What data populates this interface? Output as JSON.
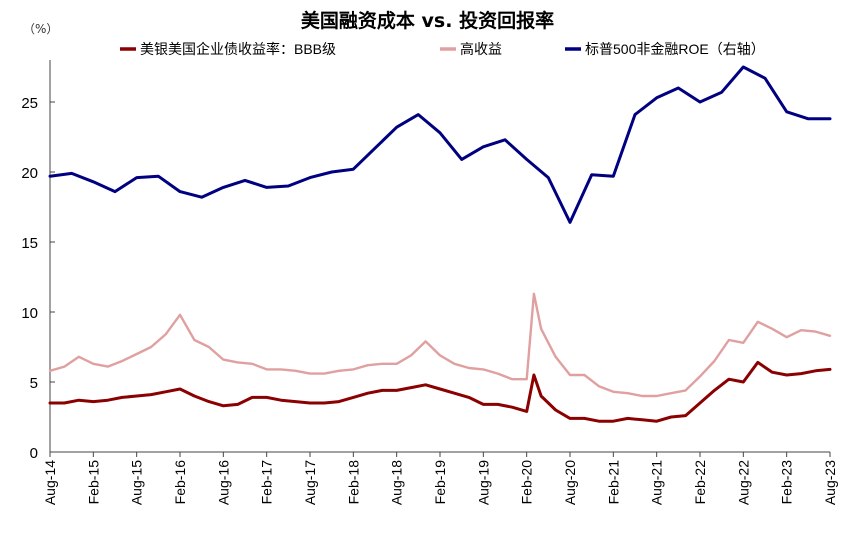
{
  "chart_data": {
    "type": "line",
    "title": "美国融资成本 vs. 投资回报率",
    "unit": "（%）",
    "xlabel": "",
    "ylabel": "",
    "ylim": [
      0,
      28
    ],
    "yticks": [
      0,
      5,
      10,
      15,
      20,
      25
    ],
    "x_start": "2014-08",
    "x_end": "2023-08",
    "xtick_labels": [
      "Aug-14",
      "Feb-15",
      "Aug-15",
      "Feb-16",
      "Aug-16",
      "Feb-17",
      "Aug-17",
      "Feb-18",
      "Aug-18",
      "Feb-19",
      "Aug-19",
      "Feb-20",
      "Aug-20",
      "Feb-21",
      "Aug-21",
      "Feb-22",
      "Aug-22",
      "Feb-23",
      "Aug-23"
    ],
    "grid": false,
    "legend_position": "top",
    "series": [
      {
        "name": "美银美国企业债收益率：BBB级",
        "color": "#8B0000",
        "points": [
          [
            "2014-08",
            3.5
          ],
          [
            "2014-10",
            3.5
          ],
          [
            "2014-12",
            3.7
          ],
          [
            "2015-02",
            3.6
          ],
          [
            "2015-04",
            3.7
          ],
          [
            "2015-06",
            3.9
          ],
          [
            "2015-08",
            4.0
          ],
          [
            "2015-10",
            4.1
          ],
          [
            "2015-12",
            4.3
          ],
          [
            "2016-02",
            4.5
          ],
          [
            "2016-04",
            4.0
          ],
          [
            "2016-06",
            3.6
          ],
          [
            "2016-08",
            3.3
          ],
          [
            "2016-10",
            3.4
          ],
          [
            "2016-12",
            3.9
          ],
          [
            "2017-02",
            3.9
          ],
          [
            "2017-04",
            3.7
          ],
          [
            "2017-06",
            3.6
          ],
          [
            "2017-08",
            3.5
          ],
          [
            "2017-10",
            3.5
          ],
          [
            "2017-12",
            3.6
          ],
          [
            "2018-02",
            3.9
          ],
          [
            "2018-04",
            4.2
          ],
          [
            "2018-06",
            4.4
          ],
          [
            "2018-08",
            4.4
          ],
          [
            "2018-10",
            4.6
          ],
          [
            "2018-12",
            4.8
          ],
          [
            "2019-02",
            4.5
          ],
          [
            "2019-04",
            4.2
          ],
          [
            "2019-06",
            3.9
          ],
          [
            "2019-08",
            3.4
          ],
          [
            "2019-10",
            3.4
          ],
          [
            "2019-12",
            3.2
          ],
          [
            "2020-02",
            2.9
          ],
          [
            "2020-03",
            5.5
          ],
          [
            "2020-04",
            4.0
          ],
          [
            "2020-06",
            3.0
          ],
          [
            "2020-08",
            2.4
          ],
          [
            "2020-10",
            2.4
          ],
          [
            "2020-12",
            2.2
          ],
          [
            "2021-02",
            2.2
          ],
          [
            "2021-04",
            2.4
          ],
          [
            "2021-06",
            2.3
          ],
          [
            "2021-08",
            2.2
          ],
          [
            "2021-10",
            2.5
          ],
          [
            "2021-12",
            2.6
          ],
          [
            "2022-02",
            3.5
          ],
          [
            "2022-04",
            4.4
          ],
          [
            "2022-06",
            5.2
          ],
          [
            "2022-08",
            5.0
          ],
          [
            "2022-10",
            6.4
          ],
          [
            "2022-12",
            5.7
          ],
          [
            "2023-02",
            5.5
          ],
          [
            "2023-04",
            5.6
          ],
          [
            "2023-06",
            5.8
          ],
          [
            "2023-08",
            5.9
          ]
        ]
      },
      {
        "name": "高收益",
        "color": "#E0A0A0",
        "points": [
          [
            "2014-08",
            5.8
          ],
          [
            "2014-10",
            6.1
          ],
          [
            "2014-12",
            6.8
          ],
          [
            "2015-02",
            6.3
          ],
          [
            "2015-04",
            6.1
          ],
          [
            "2015-06",
            6.5
          ],
          [
            "2015-08",
            7.0
          ],
          [
            "2015-10",
            7.5
          ],
          [
            "2015-12",
            8.4
          ],
          [
            "2016-02",
            9.8
          ],
          [
            "2016-04",
            8.0
          ],
          [
            "2016-06",
            7.5
          ],
          [
            "2016-08",
            6.6
          ],
          [
            "2016-10",
            6.4
          ],
          [
            "2016-12",
            6.3
          ],
          [
            "2017-02",
            5.9
          ],
          [
            "2017-04",
            5.9
          ],
          [
            "2017-06",
            5.8
          ],
          [
            "2017-08",
            5.6
          ],
          [
            "2017-10",
            5.6
          ],
          [
            "2017-12",
            5.8
          ],
          [
            "2018-02",
            5.9
          ],
          [
            "2018-04",
            6.2
          ],
          [
            "2018-06",
            6.3
          ],
          [
            "2018-08",
            6.3
          ],
          [
            "2018-10",
            6.9
          ],
          [
            "2018-12",
            7.9
          ],
          [
            "2019-02",
            6.9
          ],
          [
            "2019-04",
            6.3
          ],
          [
            "2019-06",
            6.0
          ],
          [
            "2019-08",
            5.9
          ],
          [
            "2019-10",
            5.6
          ],
          [
            "2019-12",
            5.2
          ],
          [
            "2020-02",
            5.2
          ],
          [
            "2020-03",
            11.3
          ],
          [
            "2020-04",
            8.8
          ],
          [
            "2020-06",
            6.8
          ],
          [
            "2020-08",
            5.5
          ],
          [
            "2020-10",
            5.5
          ],
          [
            "2020-12",
            4.7
          ],
          [
            "2021-02",
            4.3
          ],
          [
            "2021-04",
            4.2
          ],
          [
            "2021-06",
            4.0
          ],
          [
            "2021-08",
            4.0
          ],
          [
            "2021-10",
            4.2
          ],
          [
            "2021-12",
            4.4
          ],
          [
            "2022-02",
            5.4
          ],
          [
            "2022-04",
            6.5
          ],
          [
            "2022-06",
            8.0
          ],
          [
            "2022-08",
            7.8
          ],
          [
            "2022-10",
            9.3
          ],
          [
            "2022-12",
            8.8
          ],
          [
            "2023-02",
            8.2
          ],
          [
            "2023-04",
            8.7
          ],
          [
            "2023-06",
            8.6
          ],
          [
            "2023-08",
            8.3
          ]
        ]
      },
      {
        "name": "标普500非金融ROE（右轴）",
        "color": "#000080",
        "points": [
          [
            "2014-08",
            19.7
          ],
          [
            "2014-11",
            19.9
          ],
          [
            "2015-02",
            19.3
          ],
          [
            "2015-05",
            18.6
          ],
          [
            "2015-08",
            19.6
          ],
          [
            "2015-11",
            19.7
          ],
          [
            "2016-02",
            18.6
          ],
          [
            "2016-05",
            18.2
          ],
          [
            "2016-08",
            18.9
          ],
          [
            "2016-11",
            19.4
          ],
          [
            "2017-02",
            18.9
          ],
          [
            "2017-05",
            19.0
          ],
          [
            "2017-08",
            19.6
          ],
          [
            "2017-11",
            20.0
          ],
          [
            "2018-02",
            20.2
          ],
          [
            "2018-05",
            21.7
          ],
          [
            "2018-08",
            23.2
          ],
          [
            "2018-11",
            24.1
          ],
          [
            "2019-02",
            22.8
          ],
          [
            "2019-05",
            20.9
          ],
          [
            "2019-08",
            21.8
          ],
          [
            "2019-11",
            22.3
          ],
          [
            "2020-02",
            20.9
          ],
          [
            "2020-05",
            19.6
          ],
          [
            "2020-08",
            16.4
          ],
          [
            "2020-11",
            19.8
          ],
          [
            "2021-02",
            19.7
          ],
          [
            "2021-05",
            24.1
          ],
          [
            "2021-08",
            25.3
          ],
          [
            "2021-11",
            26.0
          ],
          [
            "2022-02",
            25.0
          ],
          [
            "2022-05",
            25.7
          ],
          [
            "2022-08",
            27.5
          ],
          [
            "2022-11",
            26.7
          ],
          [
            "2023-02",
            24.3
          ],
          [
            "2023-05",
            23.8
          ],
          [
            "2023-08",
            23.8
          ]
        ]
      }
    ]
  }
}
